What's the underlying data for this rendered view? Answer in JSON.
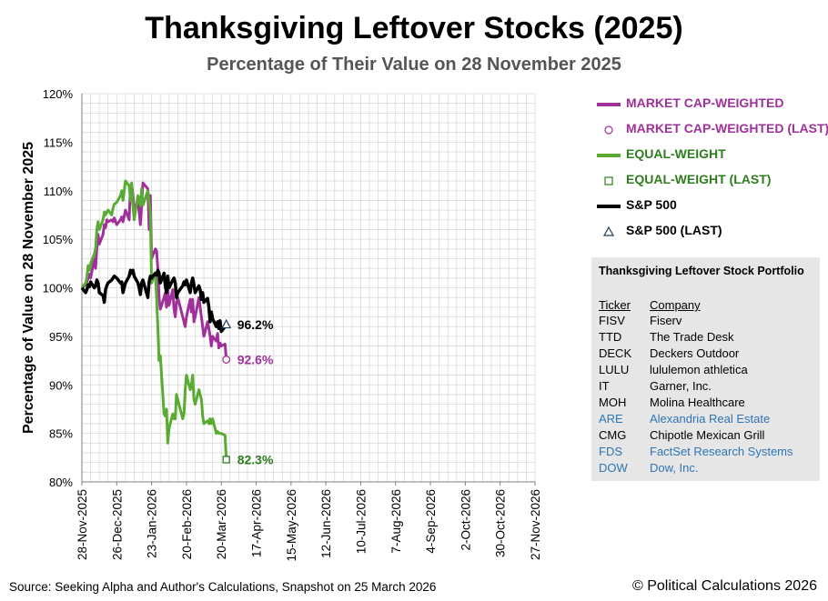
{
  "title": "Thanksgiving Leftover Stocks (2025)",
  "subtitle": "Percentage of Their Value on 28 November 2025",
  "source": "Source: Seeking Alpha and Author's Calculations, Snapshot on 25 March 2026",
  "copyright": "© Political Calculations 2026",
  "legend": [
    {
      "label": "MARKET CAP-WEIGHTED",
      "color": "#a0309a",
      "symbol": "line"
    },
    {
      "label": "MARKET CAP-WEIGHTED (LAST)",
      "color": "#a0309a",
      "symbol": "circle"
    },
    {
      "label": "EQUAL-WEIGHT",
      "color": "#5aab34",
      "symbol": "line"
    },
    {
      "label": "EQUAL-WEIGHT (LAST)",
      "color": "#2e7d1f",
      "symbol": "square"
    },
    {
      "label": "S&P 500",
      "color": "#000000",
      "symbol": "line"
    },
    {
      "label": "S&P 500 (LAST)",
      "color": "#1f3f5a",
      "symbol": "triangle"
    }
  ],
  "portfolio": {
    "title": "Thanksgiving Leftover Stock Portfolio",
    "header_ticker": "Ticker",
    "header_company": "Company",
    "rows": [
      {
        "ticker": "FISV",
        "company": "Fiserv",
        "color": "#000000"
      },
      {
        "ticker": "TTD",
        "company": "The Trade Desk",
        "color": "#000000"
      },
      {
        "ticker": "DECK",
        "company": "Deckers Outdoor",
        "color": "#000000"
      },
      {
        "ticker": "LULU",
        "company": "lululemon athletica",
        "color": "#000000"
      },
      {
        "ticker": "IT",
        "company": "Garner, Inc.",
        "color": "#000000"
      },
      {
        "ticker": "MOH",
        "company": "Molina Healthcare",
        "color": "#000000"
      },
      {
        "ticker": "ARE",
        "company": "Alexandria Real Estate",
        "color": "#2e75b6"
      },
      {
        "ticker": "CMG",
        "company": "Chipotle Mexican Grill",
        "color": "#000000"
      },
      {
        "ticker": "FDS",
        "company": "FactSet Research Systems",
        "color": "#2e75b6"
      },
      {
        "ticker": "DOW",
        "company": "Dow, Inc.",
        "color": "#2e75b6"
      }
    ]
  },
  "chart_data": {
    "type": "line",
    "ylabel": "Percentage of Value on 28 November 2025",
    "xlabel": "",
    "ylim": [
      80,
      120
    ],
    "y_ticks": [
      80,
      85,
      90,
      95,
      100,
      105,
      110,
      115,
      120
    ],
    "y_tick_labels": [
      "80%",
      "85%",
      "90%",
      "95%",
      "100%",
      "105%",
      "110%",
      "115%",
      "120%"
    ],
    "xlim": [
      "2025-11-28",
      "2026-11-27"
    ],
    "x_tick_labels": [
      "28-Nov-2025",
      "26-Dec-2025",
      "23-Jan-2026",
      "20-Feb-2026",
      "20-Mar-2026",
      "17-Apr-2026",
      "15-May-2026",
      "12-Jun-2026",
      "10-Jul-2026",
      "7-Aug-2026",
      "4-Sep-2026",
      "2-Oct-2026",
      "30-Oct-2026",
      "27-Nov-2026"
    ],
    "grid": true,
    "series": [
      {
        "name": "MARKET CAP-WEIGHTED",
        "color": "#a0309a",
        "x": [
          "2025-11-28",
          "2025-12-01",
          "2025-12-02",
          "2025-12-03",
          "2025-12-04",
          "2025-12-05",
          "2025-12-08",
          "2025-12-09",
          "2025-12-10",
          "2025-12-11",
          "2025-12-12",
          "2025-12-15",
          "2025-12-16",
          "2025-12-17",
          "2025-12-18",
          "2025-12-19",
          "2025-12-22",
          "2025-12-23",
          "2025-12-24",
          "2025-12-26",
          "2025-12-29",
          "2025-12-30",
          "2025-12-31",
          "2026-01-02",
          "2026-01-05",
          "2026-01-06",
          "2026-01-07",
          "2026-01-08",
          "2026-01-09",
          "2026-01-12",
          "2026-01-13",
          "2026-01-14",
          "2026-01-15",
          "2026-01-16",
          "2026-01-20",
          "2026-01-21",
          "2026-01-22",
          "2026-01-23",
          "2026-01-26",
          "2026-01-27",
          "2026-01-28",
          "2026-01-29",
          "2026-01-30",
          "2026-02-02",
          "2026-02-03",
          "2026-02-04",
          "2026-02-05",
          "2026-02-06",
          "2026-02-09",
          "2026-02-10",
          "2026-02-11",
          "2026-02-12",
          "2026-02-13",
          "2026-02-17",
          "2026-02-18",
          "2026-02-19",
          "2026-02-20",
          "2026-02-23",
          "2026-02-24",
          "2026-02-25",
          "2026-02-26",
          "2026-02-27",
          "2026-03-02",
          "2026-03-03",
          "2026-03-04",
          "2026-03-05",
          "2026-03-06",
          "2026-03-09",
          "2026-03-10",
          "2026-03-11",
          "2026-03-12",
          "2026-03-13",
          "2026-03-16",
          "2026-03-17",
          "2026-03-18",
          "2026-03-19",
          "2026-03-20",
          "2026-03-23",
          "2026-03-24"
        ],
        "values": [
          100.0,
          100.3,
          100.6,
          101.0,
          101.4,
          101.0,
          103.0,
          102.0,
          104.0,
          105.5,
          104.5,
          105.5,
          106.5,
          106.2,
          107.0,
          106.8,
          107.0,
          106.8,
          107.2,
          106.5,
          107.0,
          107.3,
          106.8,
          108.0,
          107.0,
          110.5,
          110.7,
          109.5,
          108.0,
          109.0,
          107.8,
          106.5,
          108.5,
          110.8,
          110.2,
          106.0,
          109.5,
          103.0,
          104.0,
          103.8,
          102.0,
          99.0,
          97.8,
          99.0,
          99.5,
          98.0,
          100.0,
          98.2,
          99.8,
          97.8,
          97.0,
          98.5,
          99.0,
          97.0,
          96.5,
          96.0,
          97.0,
          98.8,
          97.5,
          98.8,
          96.5,
          97.0,
          99.0,
          98.0,
          97.0,
          96.0,
          95.0,
          96.5,
          95.8,
          95.0,
          94.0,
          95.0,
          94.5,
          95.3,
          93.8,
          94.3,
          94.0,
          94.2,
          92.6
        ]
      },
      {
        "name": "EQUAL-WEIGHT",
        "color": "#5aab34",
        "x": [
          "2025-11-28",
          "2025-12-01",
          "2025-12-02",
          "2025-12-03",
          "2025-12-04",
          "2025-12-05",
          "2025-12-08",
          "2025-12-09",
          "2025-12-10",
          "2025-12-11",
          "2025-12-12",
          "2025-12-15",
          "2025-12-16",
          "2025-12-17",
          "2025-12-18",
          "2025-12-19",
          "2025-12-22",
          "2025-12-23",
          "2025-12-24",
          "2025-12-26",
          "2025-12-29",
          "2025-12-30",
          "2025-12-31",
          "2026-01-02",
          "2026-01-05",
          "2026-01-06",
          "2026-01-07",
          "2026-01-08",
          "2026-01-09",
          "2026-01-12",
          "2026-01-13",
          "2026-01-14",
          "2026-01-15",
          "2026-01-16",
          "2026-01-20",
          "2026-01-21",
          "2026-01-22",
          "2026-01-23",
          "2026-01-26",
          "2026-01-27",
          "2026-01-28",
          "2026-01-29",
          "2026-01-30",
          "2026-02-02",
          "2026-02-03",
          "2026-02-04",
          "2026-02-05",
          "2026-02-06",
          "2026-02-09",
          "2026-02-10",
          "2026-02-11",
          "2026-02-12",
          "2026-02-13",
          "2026-02-17",
          "2026-02-18",
          "2026-02-19",
          "2026-02-20",
          "2026-02-23",
          "2026-02-24",
          "2026-02-25",
          "2026-02-26",
          "2026-02-27",
          "2026-03-02",
          "2026-03-03",
          "2026-03-04",
          "2026-03-05",
          "2026-03-06",
          "2026-03-09",
          "2026-03-10",
          "2026-03-11",
          "2026-03-12",
          "2026-03-13",
          "2026-03-16",
          "2026-03-17",
          "2026-03-18",
          "2026-03-19",
          "2026-03-20",
          "2026-03-23",
          "2026-03-24"
        ],
        "values": [
          100.0,
          100.5,
          101.0,
          102.3,
          101.8,
          102.5,
          103.5,
          104.0,
          106.0,
          106.8,
          106.0,
          107.0,
          107.8,
          107.5,
          107.8,
          108.0,
          107.5,
          108.2,
          108.6,
          108.8,
          109.5,
          110.0,
          109.0,
          111.0,
          110.5,
          109.0,
          110.8,
          108.5,
          107.0,
          109.5,
          109.0,
          108.5,
          110.2,
          108.5,
          110.0,
          109.0,
          107.5,
          100.5,
          101.5,
          99.0,
          96.0,
          92.5,
          93.0,
          87.0,
          86.8,
          87.5,
          84.0,
          85.5,
          87.0,
          86.5,
          86.5,
          89.0,
          88.5,
          86.5,
          87.0,
          89.5,
          91.0,
          89.5,
          90.0,
          91.0,
          88.5,
          88.0,
          89.5,
          89.0,
          88.5,
          86.8,
          86.0,
          86.3,
          86.0,
          86.5,
          86.0,
          86.5,
          85.0,
          85.2,
          85.0,
          85.0,
          85.0,
          84.8,
          82.3
        ]
      },
      {
        "name": "S&P 500",
        "color": "#000000",
        "x": [
          "2025-11-28",
          "2025-12-01",
          "2025-12-02",
          "2025-12-03",
          "2025-12-04",
          "2025-12-05",
          "2025-12-08",
          "2025-12-09",
          "2025-12-10",
          "2025-12-11",
          "2025-12-12",
          "2025-12-15",
          "2025-12-16",
          "2025-12-17",
          "2025-12-18",
          "2025-12-19",
          "2025-12-22",
          "2025-12-23",
          "2025-12-24",
          "2025-12-26",
          "2025-12-29",
          "2025-12-30",
          "2025-12-31",
          "2026-01-02",
          "2026-01-05",
          "2026-01-06",
          "2026-01-07",
          "2026-01-08",
          "2026-01-09",
          "2026-01-12",
          "2026-01-13",
          "2026-01-14",
          "2026-01-15",
          "2026-01-16",
          "2026-01-20",
          "2026-01-21",
          "2026-01-22",
          "2026-01-23",
          "2026-01-26",
          "2026-01-27",
          "2026-01-28",
          "2026-01-29",
          "2026-01-30",
          "2026-02-02",
          "2026-02-03",
          "2026-02-04",
          "2026-02-05",
          "2026-02-06",
          "2026-02-09",
          "2026-02-10",
          "2026-02-11",
          "2026-02-12",
          "2026-02-13",
          "2026-02-17",
          "2026-02-18",
          "2026-02-19",
          "2026-02-20",
          "2026-02-23",
          "2026-02-24",
          "2026-02-25",
          "2026-02-26",
          "2026-02-27",
          "2026-03-02",
          "2026-03-03",
          "2026-03-04",
          "2026-03-05",
          "2026-03-06",
          "2026-03-09",
          "2026-03-10",
          "2026-03-11",
          "2026-03-12",
          "2026-03-13",
          "2026-03-16",
          "2026-03-17",
          "2026-03-18",
          "2026-03-19",
          "2026-03-20",
          "2026-03-23",
          "2026-03-24"
        ],
        "values": [
          100.0,
          99.5,
          99.8,
          100.3,
          100.1,
          100.6,
          100.0,
          100.2,
          100.8,
          100.5,
          99.5,
          99.2,
          98.5,
          99.8,
          100.2,
          100.5,
          100.8,
          101.0,
          101.2,
          101.0,
          100.5,
          100.6,
          99.5,
          100.5,
          101.2,
          101.8,
          101.5,
          101.8,
          101.2,
          100.5,
          100.0,
          99.3,
          100.5,
          100.8,
          99.0,
          100.6,
          101.2,
          101.0,
          101.5,
          101.3,
          101.8,
          101.5,
          100.5,
          101.5,
          100.2,
          99.5,
          101.2,
          100.0,
          100.8,
          101.0,
          100.5,
          99.0,
          99.5,
          100.2,
          100.6,
          100.3,
          100.8,
          99.5,
          100.5,
          101.0,
          100.3,
          99.5,
          100.2,
          99.8,
          98.8,
          99.5,
          98.5,
          98.9,
          98.0,
          96.5,
          97.5,
          96.8,
          96.0,
          96.5,
          95.8,
          96.6,
          95.5,
          96.0,
          96.2
        ]
      }
    ],
    "last_points": [
      {
        "series": "MARKET CAP-WEIGHTED",
        "x": "2026-03-24",
        "value": 92.6,
        "label": "92.6%",
        "label_color": "#a0309a",
        "marker": "circle"
      },
      {
        "series": "EQUAL-WEIGHT",
        "x": "2026-03-24",
        "value": 82.3,
        "label": "82.3%",
        "label_color": "#2e7d1f",
        "marker": "square"
      },
      {
        "series": "S&P 500",
        "x": "2026-03-24",
        "value": 96.2,
        "label": "96.2%",
        "label_color": "#000000",
        "marker": "triangle"
      }
    ]
  }
}
